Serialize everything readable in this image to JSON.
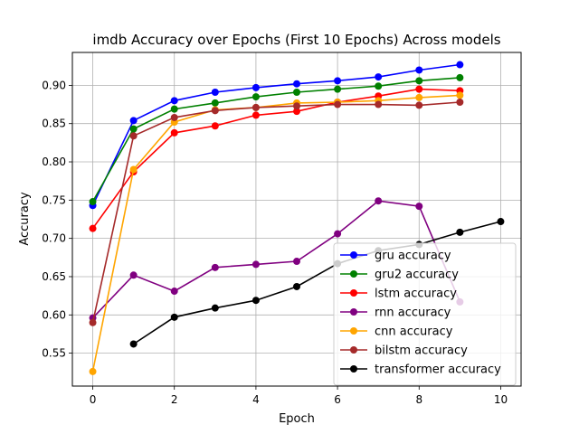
{
  "chart_data": {
    "type": "line",
    "title": "imdb Accuracy over Epochs (First 10 Epochs) Across models",
    "xlabel": "Epoch",
    "ylabel": "Accuracy",
    "xlim": [
      -0.5,
      10.5
    ],
    "ylim": [
      0.507,
      0.943
    ],
    "xticks": [
      0,
      2,
      4,
      6,
      8,
      10
    ],
    "yticks": [
      0.55,
      0.6,
      0.65,
      0.7,
      0.75,
      0.8,
      0.85,
      0.9
    ],
    "grid": true,
    "legend_position": "lower-right",
    "series": [
      {
        "name": "gru accuracy",
        "color": "#0000ff",
        "x": [
          0,
          1,
          2,
          3,
          4,
          5,
          6,
          7,
          8,
          9
        ],
        "values": [
          0.743,
          0.854,
          0.88,
          0.891,
          0.897,
          0.902,
          0.906,
          0.911,
          0.92,
          0.927
        ]
      },
      {
        "name": "gru2 accuracy",
        "color": "#008000",
        "x": [
          0,
          1,
          2,
          3,
          4,
          5,
          6,
          7,
          8,
          9
        ],
        "values": [
          0.748,
          0.843,
          0.869,
          0.877,
          0.885,
          0.891,
          0.895,
          0.899,
          0.906,
          0.91
        ]
      },
      {
        "name": "lstm accuracy",
        "color": "#ff0000",
        "x": [
          0,
          1,
          2,
          3,
          4,
          5,
          6,
          7,
          8,
          9
        ],
        "values": [
          0.713,
          0.787,
          0.838,
          0.847,
          0.861,
          0.866,
          0.878,
          0.886,
          0.895,
          0.893
        ]
      },
      {
        "name": "rnn accuracy",
        "color": "#800080",
        "x": [
          0,
          1,
          2,
          3,
          4,
          5,
          6,
          7,
          8,
          9
        ],
        "values": [
          0.596,
          0.652,
          0.631,
          0.662,
          0.666,
          0.67,
          0.706,
          0.749,
          0.742,
          0.617
        ]
      },
      {
        "name": "cnn accuracy",
        "color": "#ffa500",
        "x": [
          0,
          1,
          2,
          3,
          4,
          5,
          6,
          7,
          8,
          9
        ],
        "values": [
          0.526,
          0.79,
          0.852,
          0.868,
          0.871,
          0.877,
          0.878,
          0.88,
          0.884,
          0.887
        ]
      },
      {
        "name": "bilstm accuracy",
        "color": "#a52a2a",
        "x": [
          0,
          1,
          2,
          3,
          4,
          5,
          6,
          7,
          8,
          9
        ],
        "values": [
          0.59,
          0.834,
          0.858,
          0.867,
          0.871,
          0.873,
          0.875,
          0.875,
          0.874,
          0.878
        ]
      },
      {
        "name": "transformer accuracy",
        "color": "#000000",
        "x": [
          1,
          2,
          3,
          4,
          5,
          6,
          7,
          8,
          9,
          10
        ],
        "values": [
          0.562,
          0.597,
          0.609,
          0.619,
          0.637,
          0.667,
          0.684,
          0.692,
          0.708,
          0.722
        ]
      }
    ]
  }
}
